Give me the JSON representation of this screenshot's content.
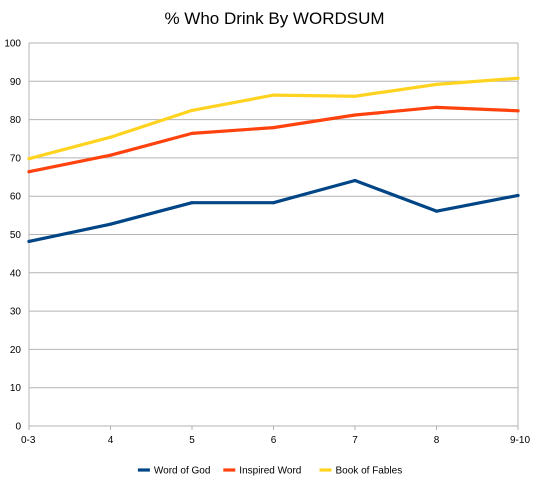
{
  "chart_data": {
    "type": "line",
    "title": "% Who Drink By WORDSUM",
    "categories": [
      "0-3",
      "4",
      "5",
      "6",
      "7",
      "8",
      "9-10"
    ],
    "ylim": [
      0,
      100
    ],
    "yticks": [
      0,
      10,
      20,
      30,
      40,
      50,
      60,
      70,
      80,
      90,
      100
    ],
    "grid": true,
    "legend_position": "bottom",
    "series": [
      {
        "name": "Word of God",
        "color": "#004586",
        "values": [
          48.2,
          52.7,
          58.3,
          58.3,
          64.1,
          56.1,
          60.2
        ]
      },
      {
        "name": "Inspired Word",
        "color": "#ff420e",
        "values": [
          66.4,
          70.7,
          76.4,
          77.9,
          81.2,
          83.2,
          82.3
        ]
      },
      {
        "name": "Book of Fables",
        "color": "#ffd320",
        "values": [
          69.8,
          75.4,
          82.4,
          86.4,
          86.1,
          89.2,
          90.8
        ]
      }
    ]
  }
}
